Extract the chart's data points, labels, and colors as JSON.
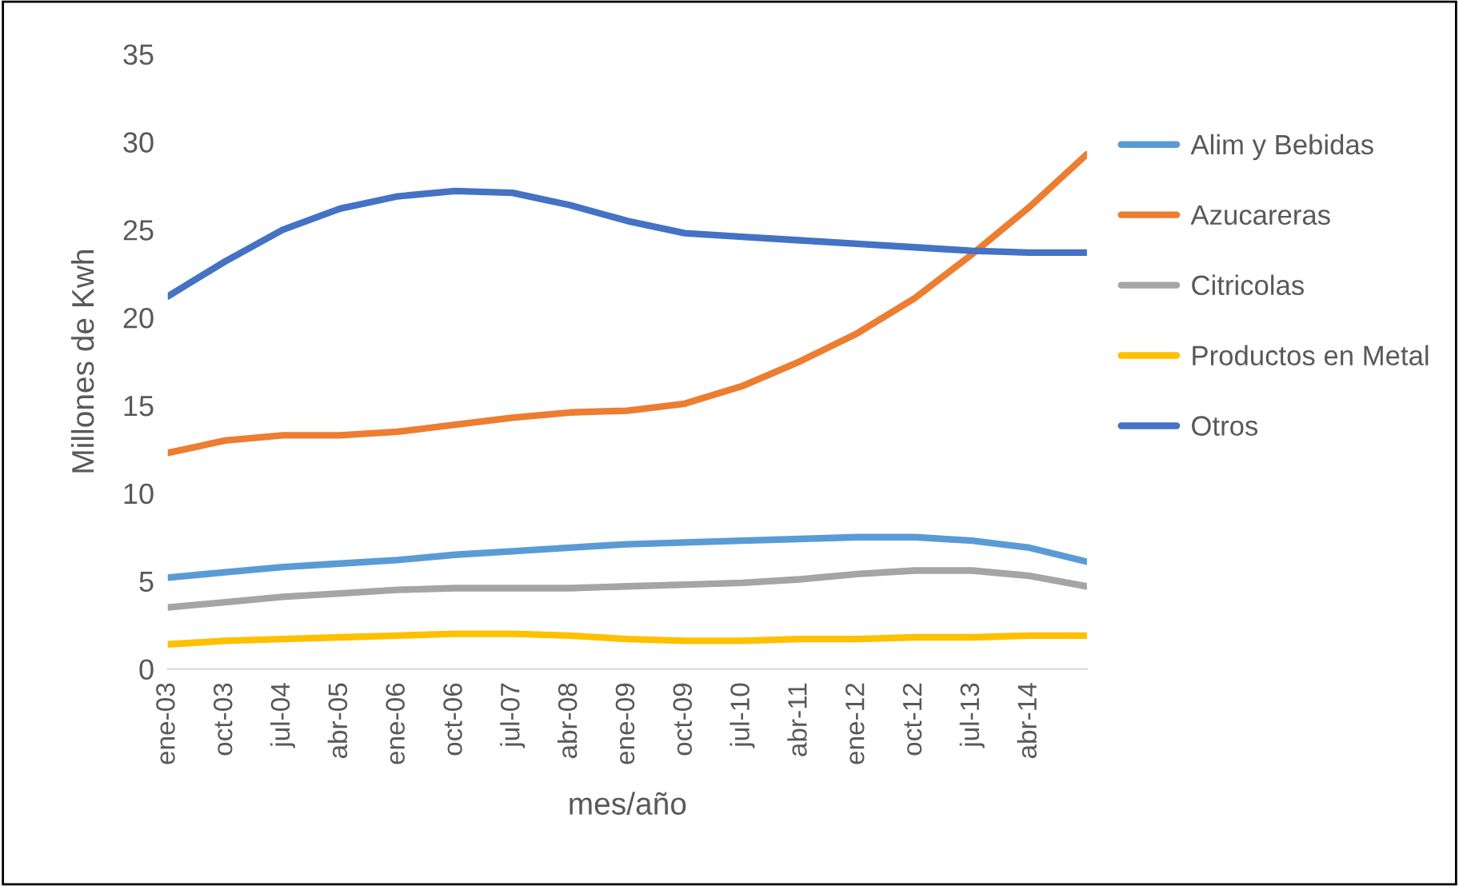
{
  "chart_data": {
    "type": "line",
    "xlabel": "mes/año",
    "ylabel": "Millones de Kwh",
    "categories": [
      "ene-03",
      "oct-03",
      "jul-04",
      "abr-05",
      "ene-06",
      "oct-06",
      "jul-07",
      "abr-08",
      "ene-09",
      "oct-09",
      "jul-10",
      "abr-11",
      "ene-12",
      "oct-12",
      "jul-13",
      "abr-14",
      null
    ],
    "series": [
      {
        "name": "Alim y Bebidas",
        "color": "#5b9bd5",
        "values": [
          5.2,
          5.5,
          5.8,
          6.0,
          6.2,
          6.5,
          6.7,
          6.9,
          7.1,
          7.2,
          7.3,
          7.4,
          7.5,
          7.5,
          7.3,
          6.9,
          6.1
        ]
      },
      {
        "name": "Azucareras",
        "color": "#ed7d31",
        "values": [
          12.3,
          13.0,
          13.3,
          13.3,
          13.5,
          13.9,
          14.3,
          14.6,
          14.7,
          15.1,
          16.1,
          17.5,
          19.1,
          21.1,
          23.6,
          26.3,
          29.3
        ]
      },
      {
        "name": "Citricolas",
        "color": "#a5a5a5",
        "values": [
          3.5,
          3.8,
          4.1,
          4.3,
          4.5,
          4.6,
          4.6,
          4.6,
          4.7,
          4.8,
          4.9,
          5.1,
          5.4,
          5.6,
          5.6,
          5.3,
          4.7
        ]
      },
      {
        "name": "Productos en Metal",
        "color": "#ffc000",
        "values": [
          1.4,
          1.6,
          1.7,
          1.8,
          1.9,
          2.0,
          2.0,
          1.9,
          1.7,
          1.6,
          1.6,
          1.7,
          1.7,
          1.8,
          1.8,
          1.9,
          1.9
        ]
      },
      {
        "name": "Otros",
        "color": "#4472c4",
        "values": [
          21.2,
          23.2,
          25.0,
          26.2,
          26.9,
          27.2,
          27.1,
          26.4,
          25.5,
          24.8,
          24.6,
          24.4,
          24.2,
          24.0,
          23.8,
          23.7,
          23.7
        ]
      }
    ],
    "ylim": [
      0,
      35
    ],
    "yticks": [
      0,
      5,
      10,
      15,
      20,
      25,
      30,
      35
    ],
    "legend": "right"
  }
}
